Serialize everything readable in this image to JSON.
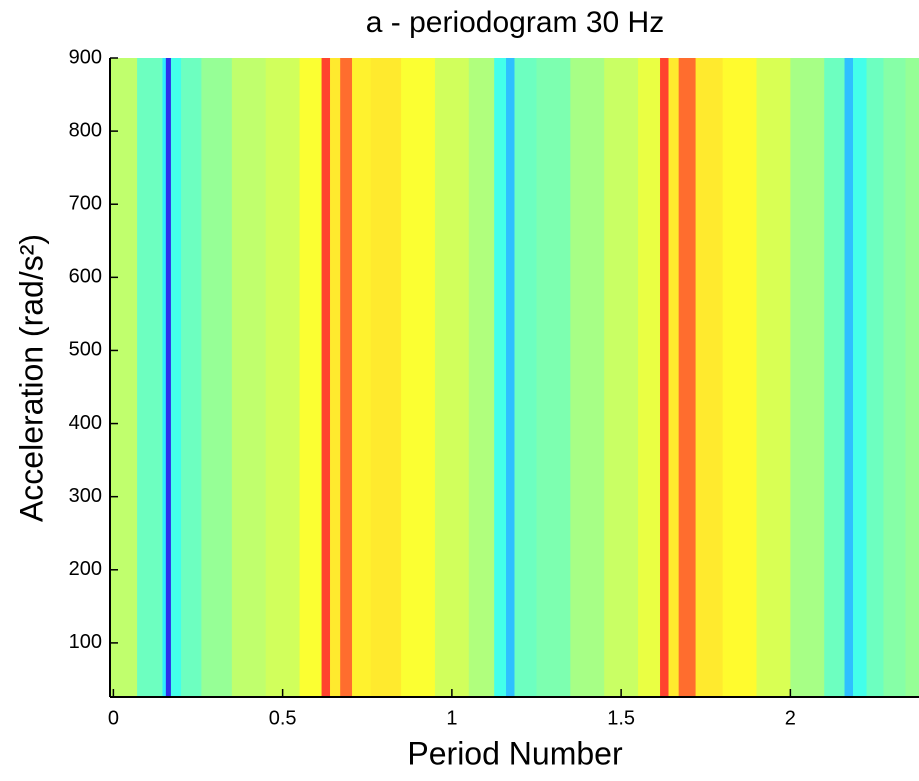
{
  "chart_data": {
    "type": "heatmap",
    "title": "a - periodogram 30 Hz",
    "xlabel": "Period Number",
    "ylabel": "Acceleration (rad/s²)",
    "x": [
      0,
      0.14,
      0.15,
      0.16,
      0.18,
      0.22,
      0.3,
      0.4,
      0.5,
      0.6,
      0.63,
      0.65,
      0.69,
      0.72,
      0.8,
      0.9,
      1.0,
      1.1,
      1.15,
      1.17,
      1.2,
      1.3,
      1.4,
      1.5,
      1.6,
      1.63,
      1.65,
      1.69,
      1.75,
      1.85,
      1.95,
      2.05,
      2.15,
      2.17,
      2.2,
      2.25,
      2.3,
      2.38
    ],
    "values": [
      0.55,
      0.45,
      0.35,
      0.1,
      0.4,
      0.45,
      0.5,
      0.55,
      0.57,
      0.62,
      0.85,
      0.65,
      0.8,
      0.64,
      0.65,
      0.62,
      0.57,
      0.53,
      0.4,
      0.3,
      0.45,
      0.47,
      0.52,
      0.56,
      0.6,
      0.85,
      0.65,
      0.8,
      0.65,
      0.63,
      0.58,
      0.52,
      0.45,
      0.3,
      0.4,
      0.45,
      0.48,
      0.5
    ],
    "colormap": "jet",
    "clim": [
      0,
      1
    ],
    "xlim": [
      -0.01,
      2.38
    ],
    "ylim": [
      26,
      900
    ],
    "xticks": [
      0,
      0.5,
      1,
      1.5,
      2
    ],
    "yticks": [
      100,
      200,
      300,
      400,
      500,
      600,
      700,
      800,
      900
    ]
  }
}
